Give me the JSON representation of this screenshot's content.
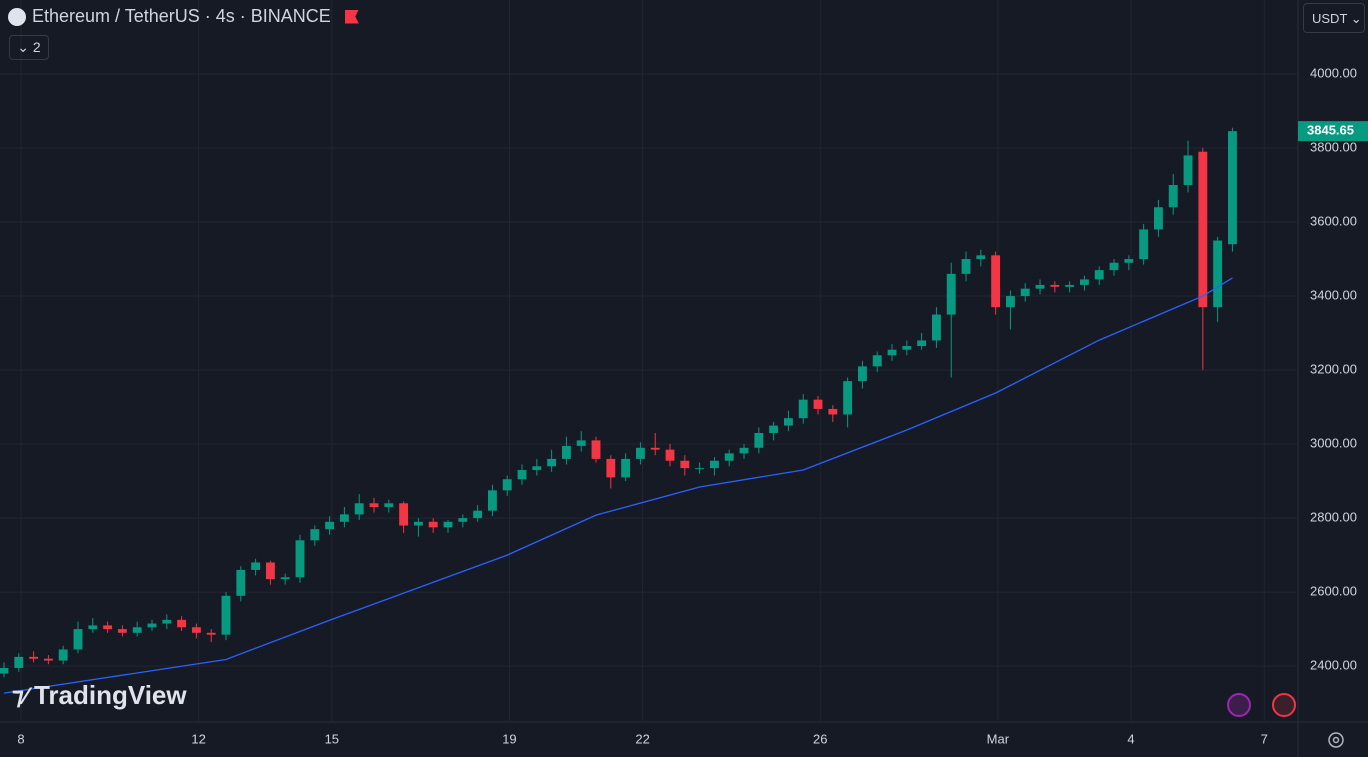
{
  "header": {
    "title": "Ethereum / TetherUS · 4s · BINANCE",
    "indicator_count": "2",
    "currency": "USDT"
  },
  "watermark": "TradingView",
  "chart_data": {
    "type": "candlestick",
    "up_color": "#089981",
    "down_color": "#f23645",
    "grid": true,
    "open": [
      2380,
      2395,
      2425,
      2420,
      2415,
      2445,
      2500,
      2510,
      2500,
      2490,
      2505,
      2515,
      2525,
      2505,
      2490,
      2485,
      2590,
      2660,
      2680,
      2635,
      2640,
      2740,
      2770,
      2790,
      2810,
      2840,
      2830,
      2840,
      2780,
      2790,
      2775,
      2790,
      2800,
      2820,
      2875,
      2905,
      2930,
      2940,
      2960,
      2995,
      3010,
      2960,
      2910,
      2960,
      2990,
      2985,
      2955,
      2935,
      2935,
      2955,
      2975,
      2990,
      3030,
      3050,
      3070,
      3120,
      3095,
      3080,
      3170,
      3210,
      3240,
      3255,
      3265,
      3280,
      3350,
      3460,
      3500,
      3510,
      3370,
      3400,
      3420,
      3430,
      3425,
      3430,
      3445,
      3470,
      3490,
      3500,
      3580,
      3640,
      3700,
      3790,
      3370,
      3540
    ],
    "high": [
      2410,
      2435,
      2440,
      2430,
      2455,
      2520,
      2530,
      2520,
      2510,
      2520,
      2525,
      2540,
      2535,
      2515,
      2500,
      2600,
      2670,
      2690,
      2685,
      2650,
      2755,
      2780,
      2805,
      2830,
      2865,
      2855,
      2850,
      2845,
      2800,
      2800,
      2795,
      2810,
      2835,
      2890,
      2915,
      2945,
      2960,
      2985,
      3020,
      3035,
      3020,
      2970,
      2975,
      3005,
      3030,
      3000,
      2970,
      2950,
      2965,
      2985,
      3000,
      3045,
      3060,
      3090,
      3135,
      3130,
      3105,
      3180,
      3225,
      3250,
      3270,
      3280,
      3300,
      3370,
      3490,
      3520,
      3525,
      3520,
      3415,
      3435,
      3445,
      3440,
      3440,
      3455,
      3480,
      3500,
      3510,
      3595,
      3660,
      3730,
      3820,
      3800,
      3560,
      3855
    ],
    "low": [
      2370,
      2385,
      2410,
      2405,
      2405,
      2435,
      2490,
      2490,
      2480,
      2480,
      2495,
      2500,
      2495,
      2475,
      2465,
      2470,
      2575,
      2645,
      2620,
      2620,
      2625,
      2725,
      2755,
      2775,
      2795,
      2815,
      2815,
      2760,
      2750,
      2760,
      2760,
      2775,
      2790,
      2805,
      2860,
      2890,
      2915,
      2925,
      2945,
      2980,
      2950,
      2880,
      2900,
      2945,
      2970,
      2940,
      2915,
      2920,
      2915,
      2940,
      2960,
      2975,
      3010,
      3035,
      3055,
      3080,
      3060,
      3045,
      3150,
      3195,
      3225,
      3240,
      3255,
      3260,
      3180,
      3440,
      3480,
      3350,
      3310,
      3385,
      3405,
      3410,
      3410,
      3415,
      3430,
      3455,
      3470,
      3485,
      3560,
      3620,
      3680,
      3200,
      3330,
      3520
    ],
    "close": [
      2395,
      2425,
      2420,
      2415,
      2445,
      2500,
      2510,
      2500,
      2490,
      2505,
      2515,
      2525,
      2505,
      2490,
      2485,
      2590,
      2660,
      2680,
      2635,
      2640,
      2740,
      2770,
      2790,
      2810,
      2840,
      2830,
      2840,
      2780,
      2790,
      2775,
      2790,
      2800,
      2820,
      2875,
      2905,
      2930,
      2940,
      2960,
      2995,
      3010,
      2960,
      2910,
      2960,
      2990,
      2985,
      2955,
      2935,
      2935,
      2955,
      2975,
      2990,
      3030,
      3050,
      3070,
      3120,
      3095,
      3080,
      3170,
      3210,
      3240,
      3255,
      3265,
      3280,
      3350,
      3460,
      3500,
      3510,
      3370,
      3400,
      3420,
      3430,
      3425,
      3430,
      3445,
      3470,
      3490,
      3500,
      3580,
      3640,
      3700,
      3780,
      3370,
      3550,
      3845.65
    ],
    "ma": {
      "color": "#2962ff",
      "x": [
        0,
        15,
        22,
        34,
        40,
        47,
        54,
        61,
        67,
        74,
        81,
        83
      ],
      "values": [
        2327,
        2418,
        2524,
        2700,
        2808,
        2884,
        2930,
        3038,
        3138,
        3281,
        3400,
        3449
      ]
    },
    "xlim": [
      -0.27,
      87.43
    ],
    "xticks": [
      {
        "value": 1.15,
        "label": "8"
      },
      {
        "value": 13.15,
        "label": "12"
      },
      {
        "value": 22.15,
        "label": "15"
      },
      {
        "value": 34.15,
        "label": "19"
      },
      {
        "value": 43.15,
        "label": "22"
      },
      {
        "value": 55.15,
        "label": "26"
      },
      {
        "value": 67.15,
        "label": "Mar"
      },
      {
        "value": 76.15,
        "label": "4"
      },
      {
        "value": 85.15,
        "label": "7"
      }
    ],
    "ylim": [
      2249,
      4200
    ],
    "yticks": [
      {
        "value": 2400,
        "label": "2400.00"
      },
      {
        "value": 2600,
        "label": "2600.00"
      },
      {
        "value": 2800,
        "label": "2800.00"
      },
      {
        "value": 3000,
        "label": "3000.00"
      },
      {
        "value": 3200,
        "label": "3200.00"
      },
      {
        "value": 3400,
        "label": "3400.00"
      },
      {
        "value": 3600,
        "label": "3600.00"
      },
      {
        "value": 3800,
        "label": "3800.00"
      },
      {
        "value": 4000,
        "label": "4000.00"
      }
    ]
  }
}
